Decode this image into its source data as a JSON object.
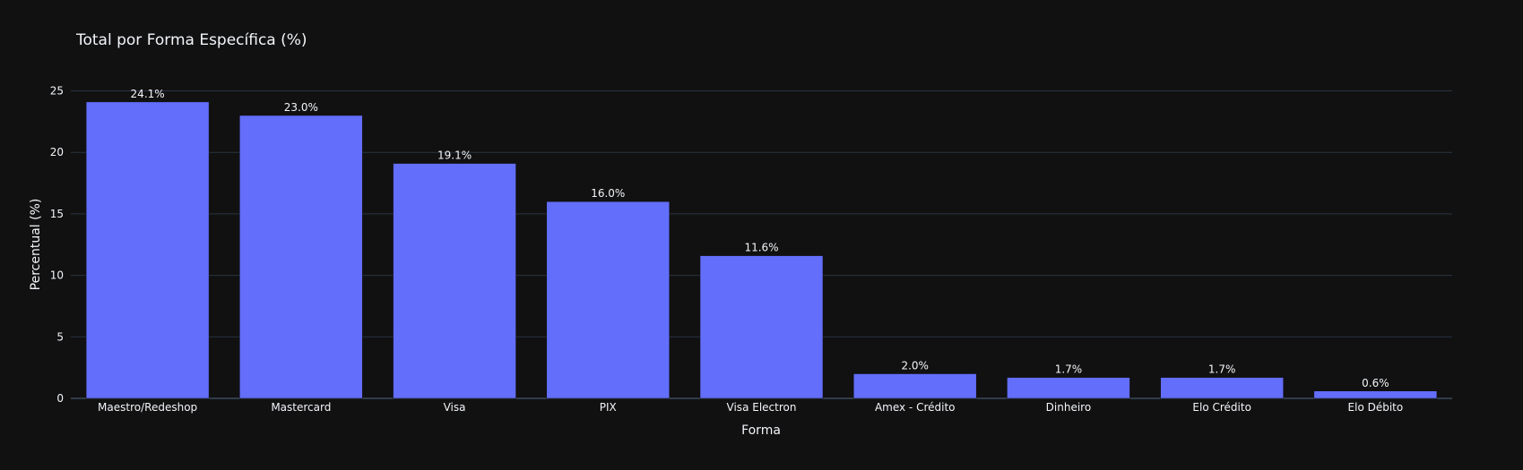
{
  "chart_data": {
    "type": "bar",
    "title": "Total por Forma Específica (%)",
    "xlabel": "Forma",
    "ylabel": "Percentual (%)",
    "categories": [
      "Maestro/Redeshop",
      "Mastercard",
      "Visa",
      "PIX",
      "Visa Electron",
      "Amex - Crédito",
      "Dinheiro",
      "Elo Crédito",
      "Elo Débito"
    ],
    "values": [
      24.1,
      23.0,
      19.1,
      16.0,
      11.6,
      2.0,
      1.7,
      1.7,
      0.6
    ],
    "value_labels": [
      "24.1%",
      "23.0%",
      "19.1%",
      "16.0%",
      "11.6%",
      "2.0%",
      "1.7%",
      "1.7%",
      "0.6%"
    ],
    "ylim": [
      0,
      25.4
    ],
    "yticks": [
      0,
      5,
      10,
      15,
      20,
      25
    ],
    "grid": true,
    "legend": "none",
    "colors": {
      "bar": "#636efa",
      "background": "#111111",
      "grid": "#283442",
      "text": "#f2f5fa"
    }
  }
}
